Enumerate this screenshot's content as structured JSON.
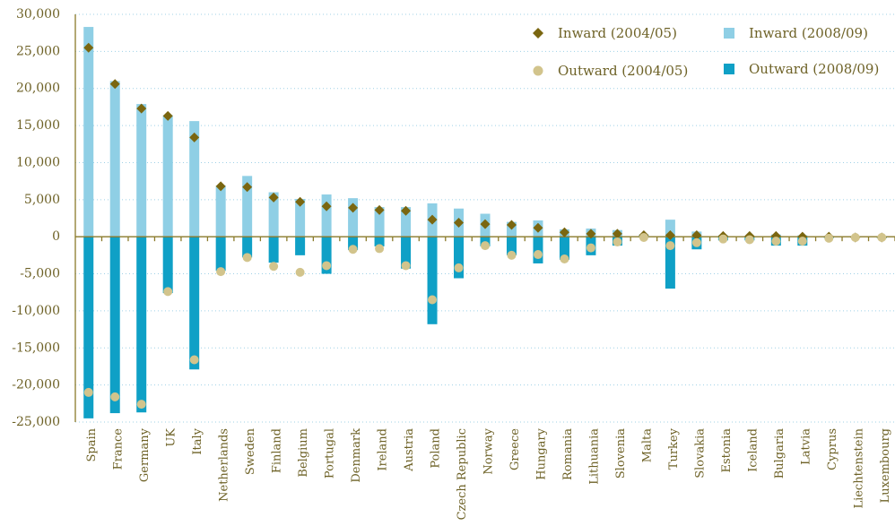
{
  "chart_data": {
    "type": "bar",
    "categories": [
      "Spain",
      "France",
      "Germany",
      "UK",
      "Italy",
      "Netherlands",
      "Sweden",
      "Finland",
      "Belgium",
      "Portugal",
      "Denmark",
      "Ireland",
      "Austria",
      "Poland",
      "Czech Republic",
      "Norway",
      "Greece",
      "Hungary",
      "Romania",
      "Lithuania",
      "Slovenia",
      "Malta",
      "Turkey",
      "Slovakia",
      "Estonia",
      "Iceland",
      "Bulgaria",
      "Latvia",
      "Cyprus",
      "Liechtenstein",
      "Luxembourg"
    ],
    "series": [
      {
        "name": "Inward (2008/09)",
        "marker": "bar",
        "color": "#8fcfe5",
        "values": [
          28300,
          21000,
          17900,
          16400,
          15600,
          6900,
          8200,
          6000,
          5100,
          5700,
          5200,
          4000,
          4000,
          4500,
          3800,
          3100,
          2000,
          2200,
          1000,
          1100,
          900,
          300,
          2300,
          700,
          200,
          100,
          300,
          200,
          100,
          0,
          0
        ]
      },
      {
        "name": "Outward (2008/09)",
        "marker": "bar",
        "color": "#0fa0c6",
        "values": [
          -24500,
          -23800,
          -23700,
          -7600,
          -17900,
          -4600,
          -2800,
          -3500,
          -2500,
          -5000,
          -1800,
          -1300,
          -4300,
          -11800,
          -5600,
          -1300,
          -2500,
          -3600,
          -3100,
          -2500,
          -1200,
          -100,
          -7000,
          -1700,
          -500,
          -500,
          -1200,
          -1200,
          -200,
          -100,
          -200
        ]
      },
      {
        "name": "Inward (2004/05)",
        "marker": "diamond",
        "color": "#7a6610",
        "values": [
          25500,
          20600,
          17300,
          16300,
          13400,
          6800,
          6700,
          5300,
          4700,
          4100,
          3900,
          3600,
          3500,
          2300,
          1900,
          1700,
          1600,
          1200,
          600,
          400,
          400,
          200,
          200,
          200,
          100,
          100,
          100,
          0,
          0,
          -100,
          -100
        ]
      },
      {
        "name": "Outward (2004/05)",
        "marker": "circle",
        "color": "#d2c48c",
        "values": [
          -21000,
          -21600,
          -22600,
          -7400,
          -16600,
          -4700,
          -2800,
          -4000,
          -4800,
          -3900,
          -1700,
          -1600,
          -3900,
          -8500,
          -4200,
          -1200,
          -2500,
          -2400,
          -3000,
          -1500,
          -700,
          -100,
          -1200,
          -800,
          -300,
          -400,
          -600,
          -600,
          -200,
          -100,
          -100
        ]
      }
    ],
    "ylim": [
      -25000,
      30000
    ],
    "yticks": [
      {
        "value": -25000,
        "label": "-25,000"
      },
      {
        "value": -20000,
        "label": "-20,000"
      },
      {
        "value": -15000,
        "label": "-15,000"
      },
      {
        "value": -10000,
        "label": "-10,000"
      },
      {
        "value": -5000,
        "label": "-5,000"
      },
      0,
      {
        "value": 5000,
        "label": "5,000"
      },
      {
        "value": 10000,
        "label": "10,000"
      },
      {
        "value": 15000,
        "label": "15,000"
      },
      {
        "value": 20000,
        "label": "20,000"
      },
      {
        "value": 25000,
        "label": "25,000"
      },
      {
        "value": 30000,
        "label": "30,000"
      }
    ],
    "grid": true,
    "legend": "top-right"
  }
}
